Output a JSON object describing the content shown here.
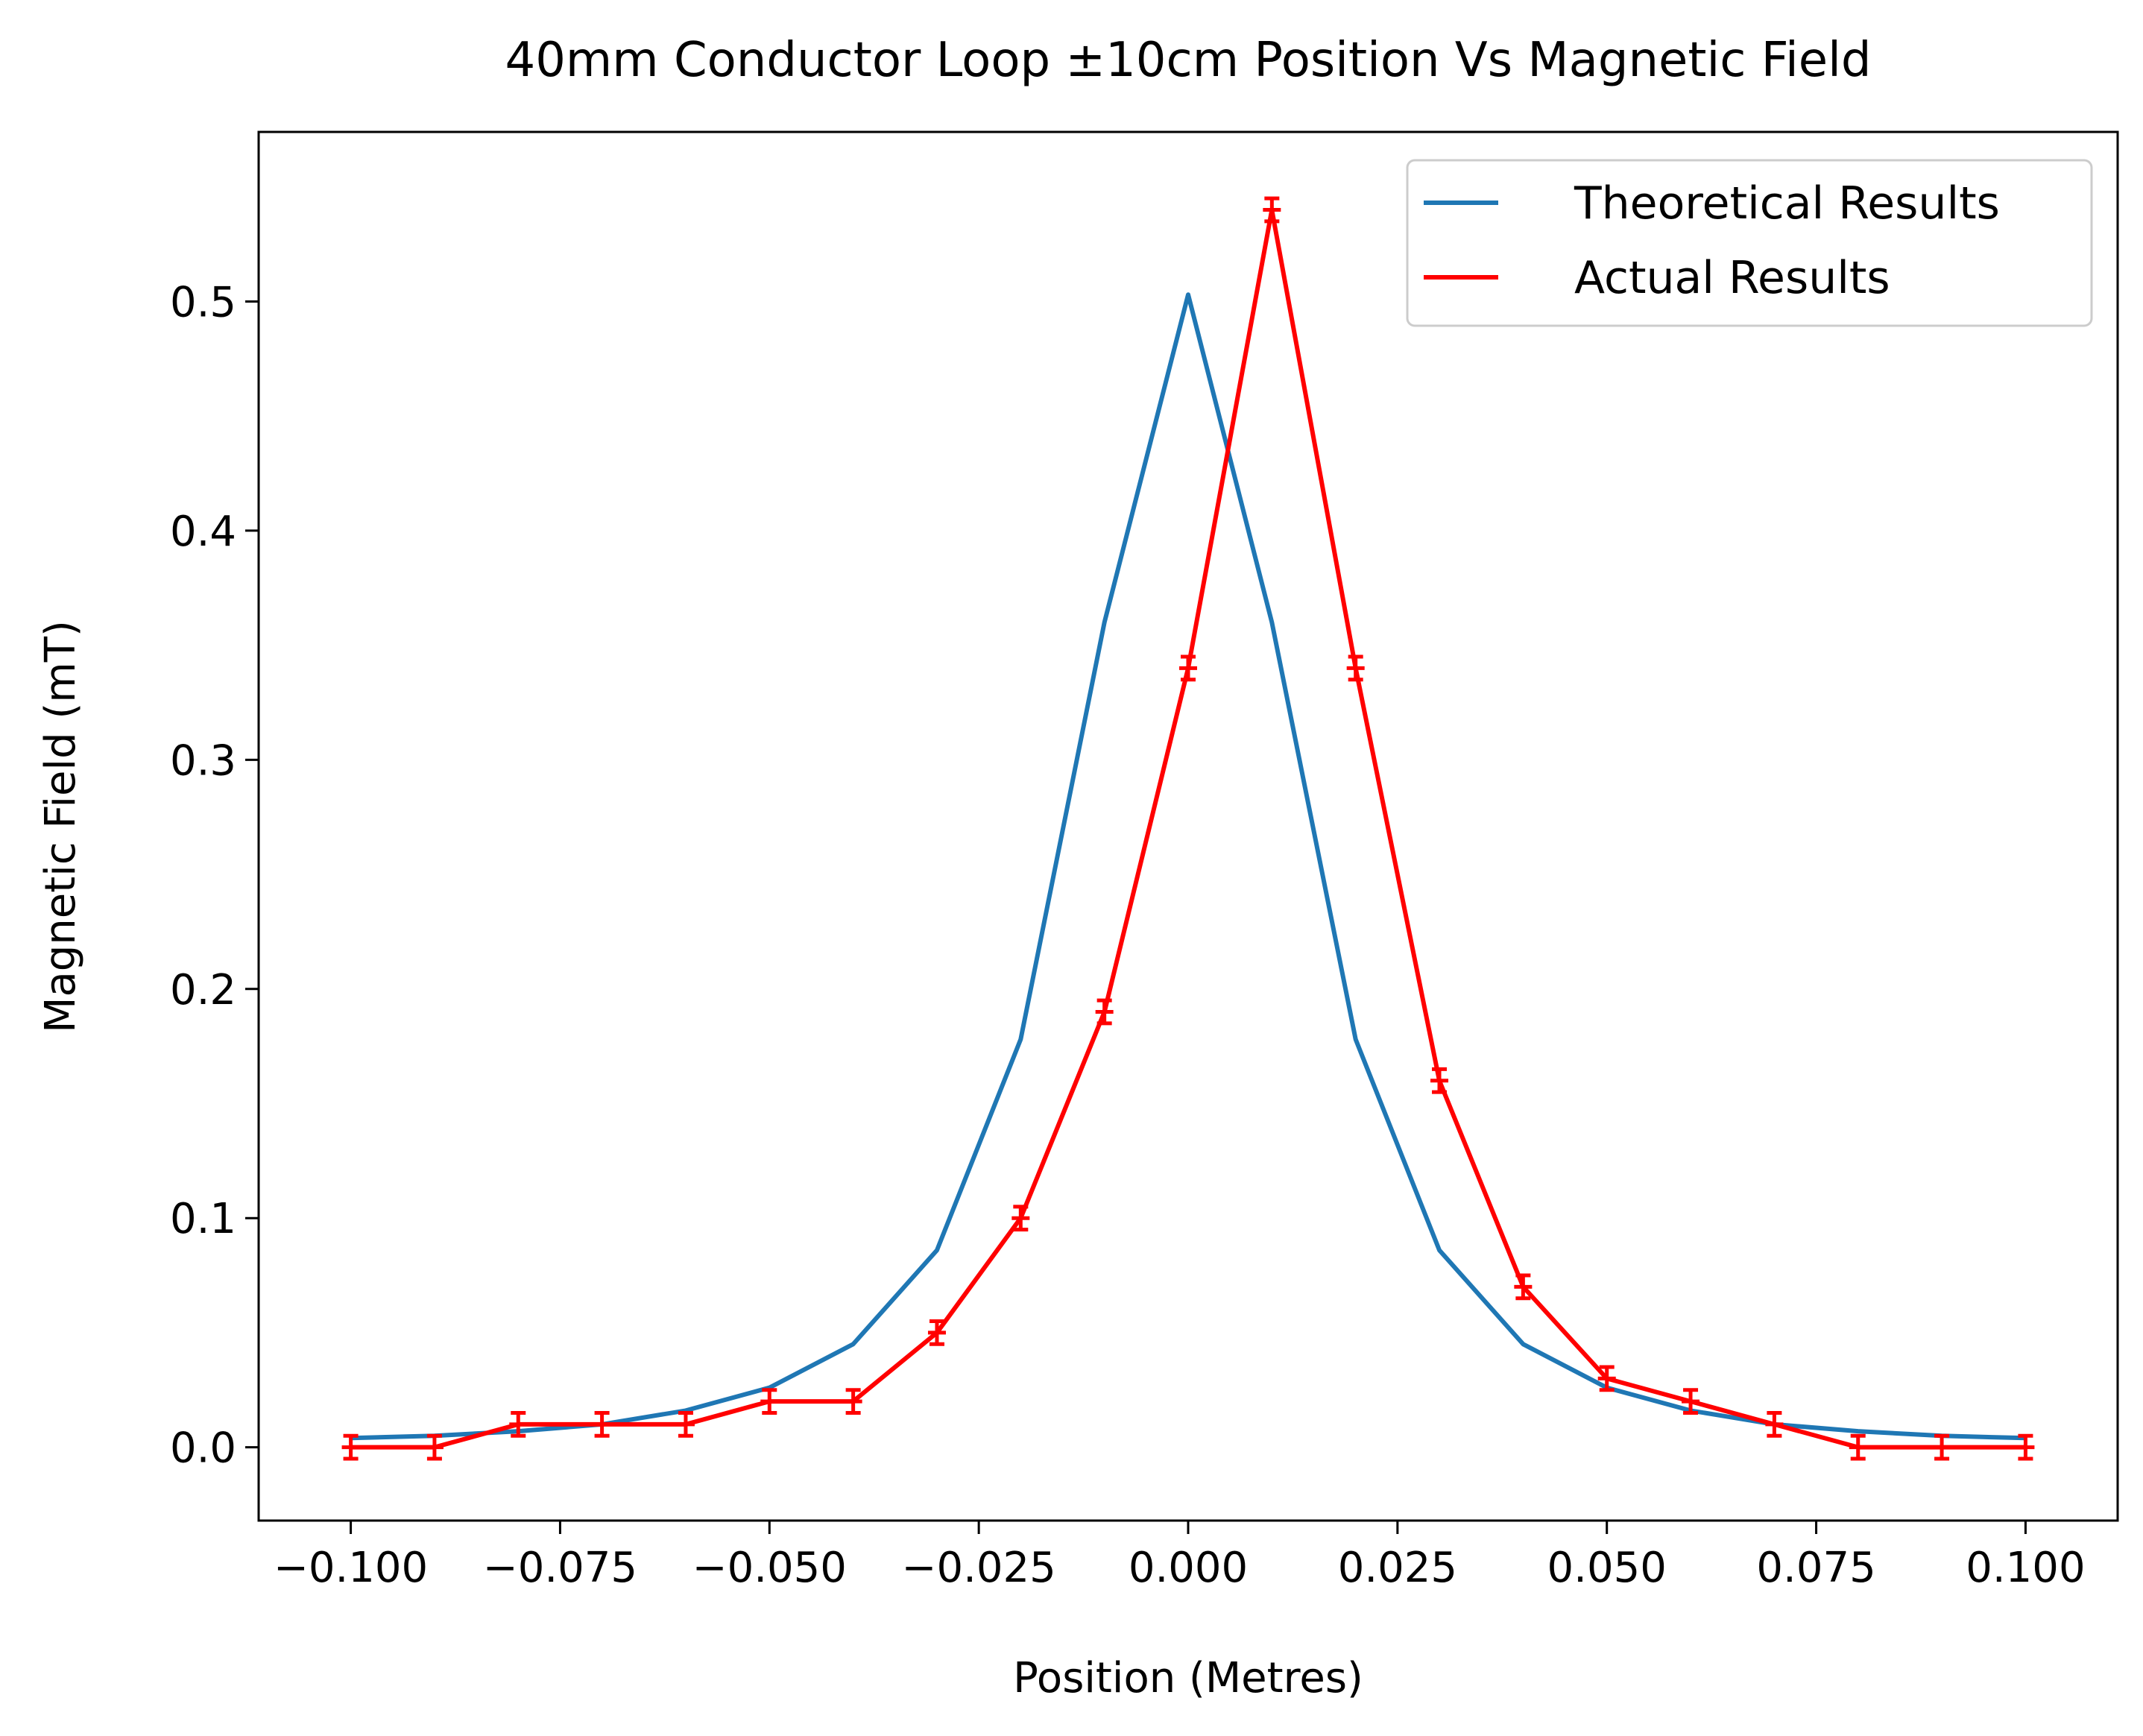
{
  "chart_data": {
    "type": "line",
    "title": "40mm Conductor Loop ±10cm Position Vs Magnetic Field",
    "xlabel": "Position (Metres)",
    "ylabel": "Magnetic Field (mT)",
    "xlim": [
      -0.111,
      0.111
    ],
    "ylim": [
      -0.032,
      0.574
    ],
    "x_ticks": [
      -0.1,
      -0.075,
      -0.05,
      -0.025,
      0.0,
      0.025,
      0.05,
      0.075,
      0.1
    ],
    "x_tick_labels": [
      "−0.100",
      "−0.075",
      "−0.050",
      "−0.025",
      "0.000",
      "0.025",
      "0.050",
      "0.075",
      "0.100"
    ],
    "y_ticks": [
      0.0,
      0.1,
      0.2,
      0.3,
      0.4,
      0.5
    ],
    "y_tick_labels": [
      "0.0",
      "0.1",
      "0.2",
      "0.3",
      "0.4",
      "0.5"
    ],
    "grid": false,
    "legend_position": "top-right",
    "x": [
      -0.1,
      -0.09,
      -0.08,
      -0.07,
      -0.06,
      -0.05,
      -0.04,
      -0.03,
      -0.02,
      -0.01,
      0.0,
      0.01,
      0.02,
      0.03,
      0.04,
      0.05,
      0.06,
      0.07,
      0.08,
      0.09,
      0.1
    ],
    "series": [
      {
        "name": "Theoretical Results",
        "color": "#1f77b4",
        "values": [
          0.004,
          0.005,
          0.007,
          0.01,
          0.016,
          0.026,
          0.045,
          0.086,
          0.178,
          0.36,
          0.503,
          0.36,
          0.178,
          0.086,
          0.045,
          0.026,
          0.016,
          0.01,
          0.007,
          0.005,
          0.004
        ]
      },
      {
        "name": "Actual Results",
        "color": "#ff0000",
        "values": [
          0.0,
          0.0,
          0.01,
          0.01,
          0.01,
          0.02,
          0.02,
          0.05,
          0.1,
          0.19,
          0.34,
          0.54,
          0.34,
          0.16,
          0.07,
          0.03,
          0.02,
          0.01,
          0.0,
          0.0,
          0.0
        ],
        "error": 0.005
      }
    ]
  }
}
